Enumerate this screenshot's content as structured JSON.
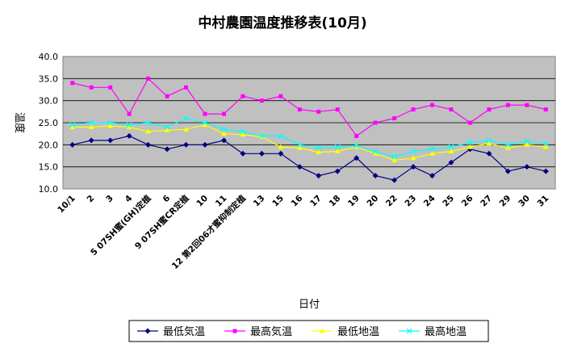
{
  "chart_data": {
    "type": "line",
    "title": "中村農園温度推移表(10月)",
    "xlabel": "日付",
    "ylabel": "温度",
    "ylim": [
      10.0,
      40.0
    ],
    "yticks": [
      "10.0",
      "15.0",
      "20.0",
      "25.0",
      "30.0",
      "35.0",
      "40.0"
    ],
    "grid": true,
    "legend_position": "bottom",
    "categories": [
      "10/1",
      "2",
      "3",
      "4",
      "5 07SH蜜(GH)定植",
      "6",
      "9 07SH蜜CR定植",
      "10",
      "11",
      "12 第2回06才蜜抑制定植",
      "13",
      "15",
      "16",
      "17",
      "18",
      "19",
      "20",
      "22",
      "23",
      "24",
      "25",
      "26",
      "27",
      "29",
      "30",
      "31"
    ],
    "series": [
      {
        "name": "最低気温",
        "color": "#000080",
        "marker": "diamond",
        "values": [
          20,
          21,
          21,
          22,
          20,
          19,
          20,
          20,
          21,
          18,
          18,
          18,
          15,
          13,
          14,
          17,
          13,
          12,
          15,
          13,
          16,
          19,
          18,
          14,
          15,
          14
        ]
      },
      {
        "name": "最高気温",
        "color": "#ff00ff",
        "marker": "square",
        "values": [
          34,
          33,
          33,
          27,
          35,
          31,
          33,
          27,
          27,
          31,
          30,
          31,
          28,
          27.5,
          28,
          22,
          25,
          26,
          28,
          29,
          28,
          25,
          28,
          29,
          29,
          28
        ]
      },
      {
        "name": "最低地温",
        "color": "#ffff00",
        "marker": "triangle",
        "values": [
          24,
          24,
          24.3,
          24,
          23,
          23.3,
          23.5,
          24.5,
          22.5,
          22.3,
          21.8,
          19.5,
          19.3,
          18.3,
          18.5,
          19.5,
          18,
          16.5,
          17,
          18,
          18.5,
          19.5,
          20.3,
          19.3,
          20,
          19.5
        ]
      },
      {
        "name": "最高地温",
        "color": "#00ffff",
        "marker": "x",
        "values": [
          24.5,
          25,
          25,
          24.5,
          25,
          24,
          26,
          25,
          23.5,
          23,
          22,
          22,
          20,
          19.3,
          19.5,
          19.8,
          18.5,
          17.3,
          18.5,
          19,
          19.5,
          20.5,
          21,
          20,
          20.8,
          20.3
        ]
      }
    ]
  }
}
